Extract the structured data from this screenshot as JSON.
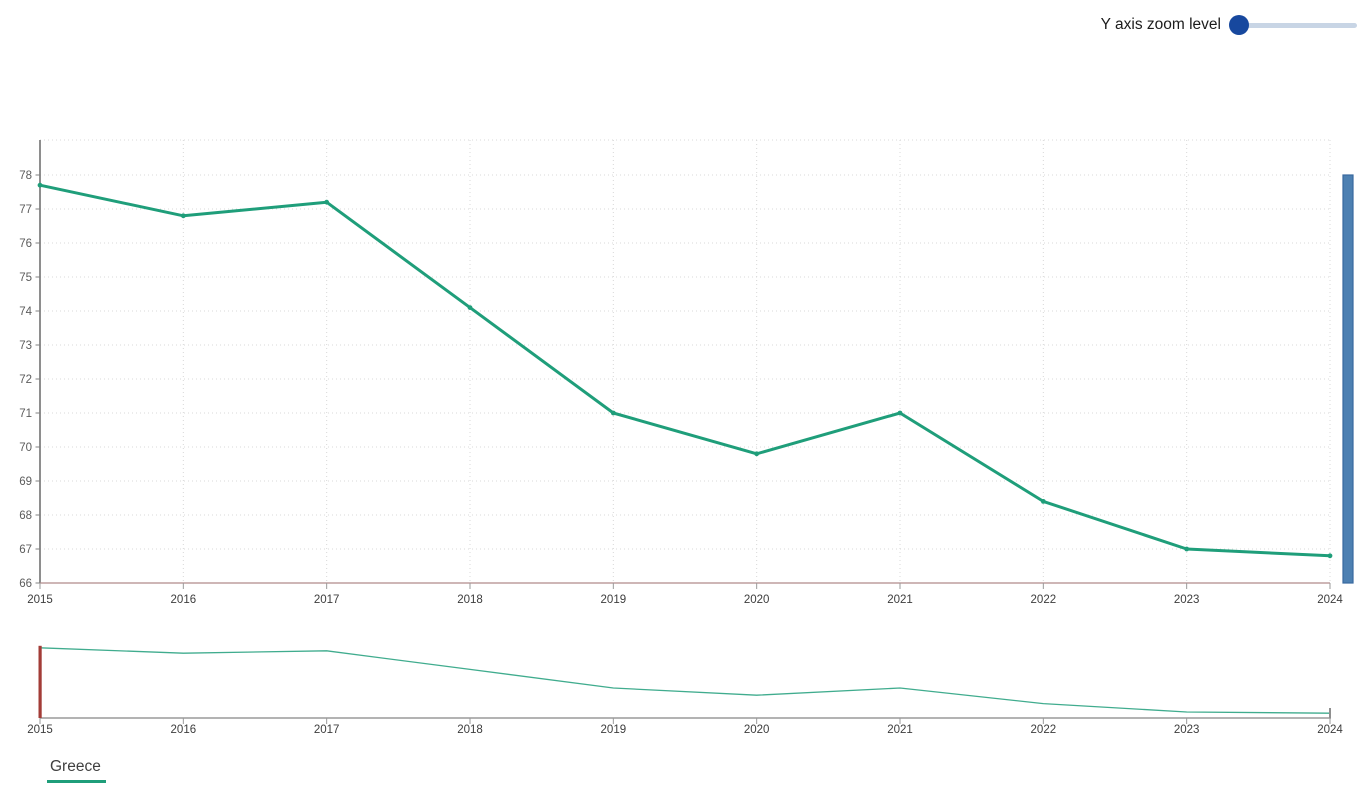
{
  "controls": {
    "y_zoom_label": "Y axis zoom level",
    "y_zoom_value_pct": 0
  },
  "legend": {
    "position": "bottom-left",
    "items": [
      {
        "label": "Greece",
        "color": "#1f9e7a"
      }
    ]
  },
  "chart_data": {
    "type": "line",
    "title": "",
    "xlabel": "",
    "ylabel": "",
    "x": [
      2015,
      2016,
      2017,
      2018,
      2019,
      2020,
      2021,
      2022,
      2023,
      2024
    ],
    "x_ticks": [
      "2015",
      "2016",
      "2017",
      "2018",
      "2019",
      "2020",
      "2021",
      "2022",
      "2023",
      "2024"
    ],
    "y_ticks": [
      66,
      67,
      68,
      69,
      70,
      71,
      72,
      73,
      74,
      75,
      76,
      77,
      78
    ],
    "ylim": [
      66,
      78
    ],
    "grid": "dotted",
    "legend_position": "bottom-left",
    "series": [
      {
        "name": "Greece",
        "color": "#1f9e7a",
        "values": [
          77.7,
          76.8,
          77.2,
          74.1,
          71.0,
          69.8,
          71.0,
          68.4,
          67.0,
          66.8
        ]
      }
    ],
    "navigator": {
      "present": true,
      "x_ticks": [
        "2015",
        "2016",
        "2017",
        "2018",
        "2019",
        "2020",
        "2021",
        "2022",
        "2023",
        "2024"
      ],
      "selection_start": "2015",
      "selection_end": "2024"
    }
  },
  "colors": {
    "series": "#1f9e7a",
    "grid": "#d8d8d8",
    "y_axis_line": "#818181",
    "x_axis_line": "#b18b8b",
    "axis_tick": "#9a9a9a",
    "x_tick_label": "#3d3d3d",
    "y_tick_label": "#5c5c5c",
    "nav_axis_line": "#9a9a9a",
    "nav_start_handle": "#a33c37",
    "nav_end_handle": "#8f8f8f",
    "y_scrollbar_fill": "#4d80b2",
    "y_scrollbar_border": "#39699f",
    "slider_handle": "#17489e",
    "slider_track": "#c8d5e5"
  }
}
